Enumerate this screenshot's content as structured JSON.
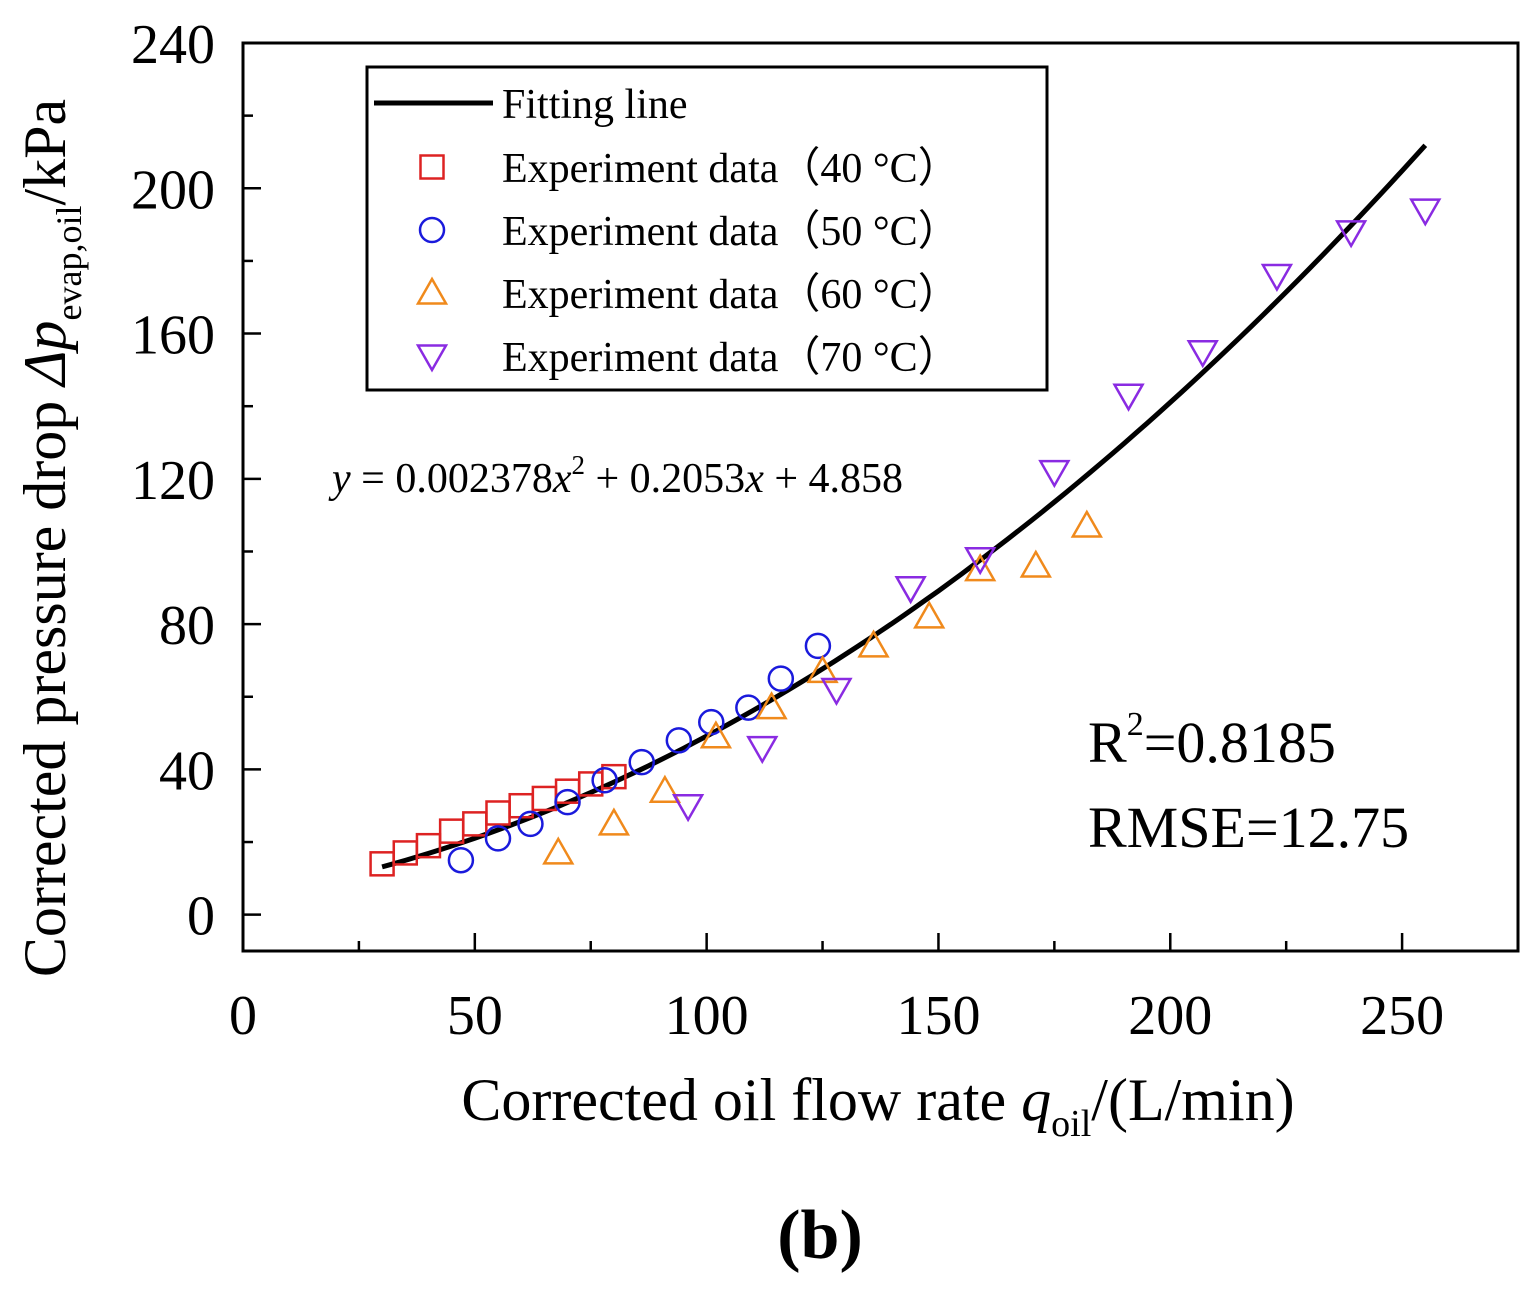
{
  "chart_data": {
    "type": "scatter",
    "title": "",
    "panel_label": "(b)",
    "xlabel": {
      "main": "Corrected oil flow rate ",
      "var": "q",
      "sub": "oil",
      "unit": "/(L/min)"
    },
    "ylabel": {
      "main": "Corrected pressure drop ",
      "delta": "Δ",
      "var": "p",
      "sub": "evap,oil",
      "unit": "/kPa"
    },
    "xlim": [
      0,
      275
    ],
    "ylim": [
      -10,
      240
    ],
    "x_ticks": [
      0,
      50,
      100,
      150,
      200,
      250
    ],
    "x_tick_labels": [
      "0",
      "50",
      "100",
      "150",
      "200",
      "250"
    ],
    "y_ticks": [
      0,
      40,
      80,
      120,
      160,
      200,
      240
    ],
    "y_tick_labels": [
      "0",
      "40",
      "80",
      "120",
      "160",
      "200",
      "240"
    ],
    "fit": {
      "name": "Fitting line",
      "a": 0.002378,
      "b": 0.2053,
      "c": 4.858,
      "x_range": [
        30,
        255
      ],
      "color": "#000000",
      "equation_parts": [
        "y",
        " = 0.002378",
        "x",
        "2",
        " + 0.2053",
        "x",
        " + 4.858"
      ]
    },
    "stats": {
      "r2_prefix": "R",
      "r2_sup": "2",
      "r2_value": "=0.8185",
      "rmse": "RMSE=12.75"
    },
    "series": [
      {
        "name": "Experiment data（40 °C）",
        "marker": "square",
        "color": "#dd2222",
        "points": [
          [
            30,
            14
          ],
          [
            35,
            17
          ],
          [
            40,
            19
          ],
          [
            45,
            23
          ],
          [
            50,
            25
          ],
          [
            55,
            28
          ],
          [
            60,
            30
          ],
          [
            65,
            32
          ],
          [
            70,
            34
          ],
          [
            75,
            36
          ],
          [
            80,
            38
          ]
        ]
      },
      {
        "name": "Experiment data（50 °C）",
        "marker": "circle",
        "color": "#1a1adc",
        "points": [
          [
            47,
            15
          ],
          [
            55,
            21
          ],
          [
            62,
            25
          ],
          [
            70,
            31
          ],
          [
            78,
            37
          ],
          [
            86,
            42
          ],
          [
            94,
            48
          ],
          [
            101,
            53
          ],
          [
            109,
            57
          ],
          [
            116,
            65
          ],
          [
            124,
            74
          ]
        ]
      },
      {
        "name": "Experiment data（60 °C）",
        "marker": "triangle-up",
        "color": "#f08a1c",
        "points": [
          [
            68,
            17
          ],
          [
            80,
            25
          ],
          [
            91,
            34
          ],
          [
            102,
            49
          ],
          [
            114,
            57
          ],
          [
            125,
            67
          ],
          [
            136,
            74
          ],
          [
            148,
            82
          ],
          [
            159,
            95
          ],
          [
            171,
            96
          ],
          [
            182,
            107
          ]
        ]
      },
      {
        "name": "Experiment data（70 °C）",
        "marker": "triangle-down",
        "color": "#8a2be2",
        "points": [
          [
            96,
            30
          ],
          [
            112,
            46
          ],
          [
            128,
            62
          ],
          [
            144,
            90
          ],
          [
            159,
            98
          ],
          [
            175,
            122
          ],
          [
            191,
            143
          ],
          [
            207,
            155
          ],
          [
            223,
            176
          ],
          [
            239,
            188
          ],
          [
            255,
            194
          ]
        ]
      }
    ],
    "legend_position": "top-left",
    "legend": [
      {
        "label": "Fitting line",
        "marker": "line"
      },
      {
        "label": "Experiment data（40 °C）",
        "marker": "square"
      },
      {
        "label": "Experiment data（50 °C）",
        "marker": "circle"
      },
      {
        "label": "Experiment data（60 °C）",
        "marker": "triangle-up"
      },
      {
        "label": "Experiment data（70 °C）",
        "marker": "triangle-down"
      }
    ]
  }
}
